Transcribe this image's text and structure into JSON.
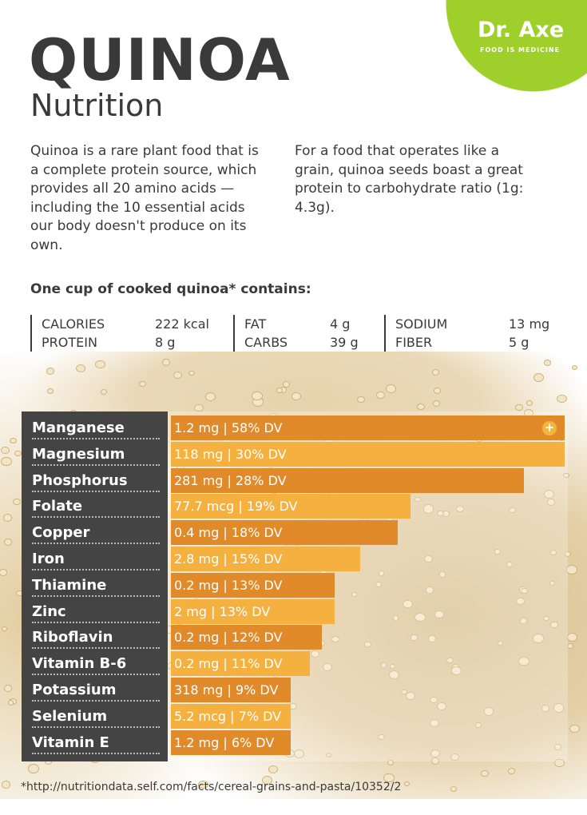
{
  "logo": {
    "name": "Dr. Axe",
    "tagline": "FOOD IS MEDICINE",
    "color": "#9fcf2a"
  },
  "title": "QUINOA",
  "subtitle": "Nutrition",
  "intro_left": "Quinoa is a rare plant food that is a complete protein source, which provides all 20 amino acids — including the 10 essential acids our body doesn't produce on its own.",
  "intro_right": "For a food that operates like a grain, quinoa seeds boast a great protein to carbohydrate ratio (1g: 4.3g).",
  "serving_heading": "One cup of cooked quinoa* contains:",
  "facts": [
    [
      {
        "label": "CALORIES",
        "value": "222 kcal"
      },
      {
        "label": "PROTEIN",
        "value": "8 g"
      }
    ],
    [
      {
        "label": "FAT",
        "value": "4 g"
      },
      {
        "label": "CARBS",
        "value": "39 g"
      }
    ],
    [
      {
        "label": "SODIUM",
        "value": "13 mg"
      },
      {
        "label": "FIBER",
        "value": "5 g"
      }
    ]
  ],
  "chart_data": {
    "type": "bar",
    "orientation": "horizontal",
    "categories": [
      "Manganese",
      "Magnesium",
      "Phosphorus",
      "Folate",
      "Copper",
      "Iron",
      "Thiamine",
      "Zinc",
      "Riboflavin",
      "Vitamin B-6",
      "Potassium",
      "Selenium",
      "Vitamin E"
    ],
    "values": [
      58,
      30,
      28,
      19,
      18,
      15,
      13,
      13,
      12,
      11,
      9,
      7,
      6
    ],
    "unit": "% DV",
    "data_labels": [
      "1.2 mg | 58% DV",
      "118 mg | 30% DV",
      "281 mg | 28% DV",
      "77.7 mcg | 19% DV",
      "0.4 mg | 18% DV",
      "2.8 mg | 15% DV",
      "0.2 mg | 13% DV",
      "2 mg | 13% DV",
      "0.2 mg | 12% DV",
      "0.2 mg | 11% DV",
      "318 mg | 9% DV",
      "5.2 mcg | 7% DV",
      "1.2 mg | 6% DV"
    ],
    "colors": [
      "#e08a2a",
      "#f5b13f"
    ]
  },
  "source": "*http://nutritiondata.self.com/facts/cereal-grains-and-pasta/10352/2"
}
